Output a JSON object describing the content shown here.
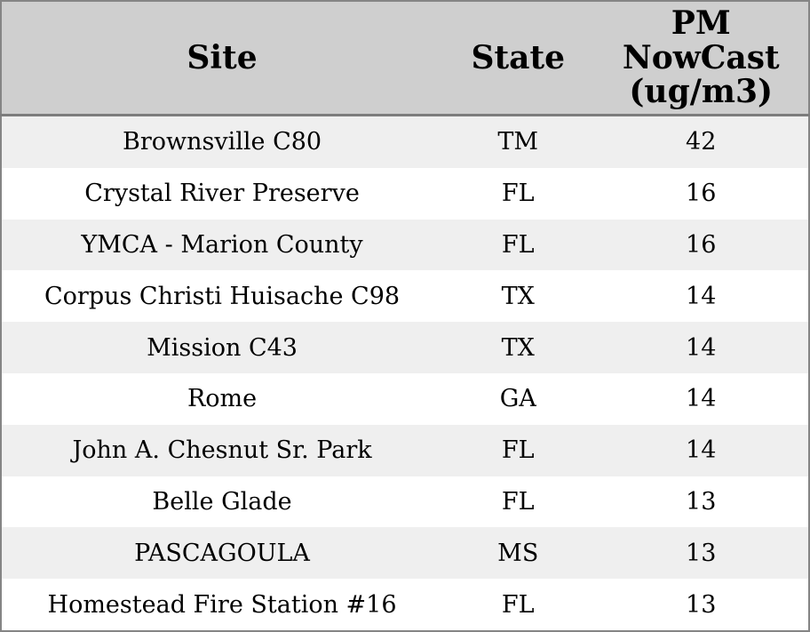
{
  "table": {
    "columns": [
      {
        "id": "site",
        "label": "Site"
      },
      {
        "id": "state",
        "label": "State"
      },
      {
        "id": "pm_nowcast",
        "label": "PM\nNowCast\n(ug/m3)"
      }
    ],
    "rows": [
      {
        "site": "Brownsville C80",
        "state": "TM",
        "pm_nowcast": "42"
      },
      {
        "site": "Crystal River Preserve",
        "state": "FL",
        "pm_nowcast": "16"
      },
      {
        "site": "YMCA - Marion County",
        "state": "FL",
        "pm_nowcast": "16"
      },
      {
        "site": "Corpus Christi Huisache C98",
        "state": "TX",
        "pm_nowcast": "14"
      },
      {
        "site": "Mission C43",
        "state": "TX",
        "pm_nowcast": "14"
      },
      {
        "site": "Rome",
        "state": "GA",
        "pm_nowcast": "14"
      },
      {
        "site": "John A. Chesnut Sr. Park",
        "state": "FL",
        "pm_nowcast": "14"
      },
      {
        "site": "Belle Glade",
        "state": "FL",
        "pm_nowcast": "13"
      },
      {
        "site": "PASCAGOULA",
        "state": "MS",
        "pm_nowcast": "13"
      },
      {
        "site": "Homestead Fire Station #16",
        "state": "FL",
        "pm_nowcast": "13"
      }
    ]
  },
  "chart_data": {
    "type": "table",
    "columns": [
      "Site",
      "State",
      "PM NowCast (ug/m3)"
    ],
    "rows": [
      [
        "Brownsville C80",
        "TM",
        42
      ],
      [
        "Crystal River Preserve",
        "FL",
        16
      ],
      [
        "YMCA - Marion County",
        "FL",
        16
      ],
      [
        "Corpus Christi Huisache C98",
        "TX",
        14
      ],
      [
        "Mission C43",
        "TX",
        14
      ],
      [
        "Rome",
        "GA",
        14
      ],
      [
        "John A. Chesnut Sr. Park",
        "FL",
        14
      ],
      [
        "Belle Glade",
        "FL",
        13
      ],
      [
        "PASCAGOULA",
        "MS",
        13
      ],
      [
        "Homestead Fire Station #16",
        "FL",
        13
      ]
    ]
  },
  "colors": {
    "header_bg": "#cfcfcf",
    "row_bg": "#ffffff",
    "row_alt_bg": "#efefef",
    "border": "#858585",
    "header_rule": "#7d7d7d",
    "text": "#000000"
  }
}
